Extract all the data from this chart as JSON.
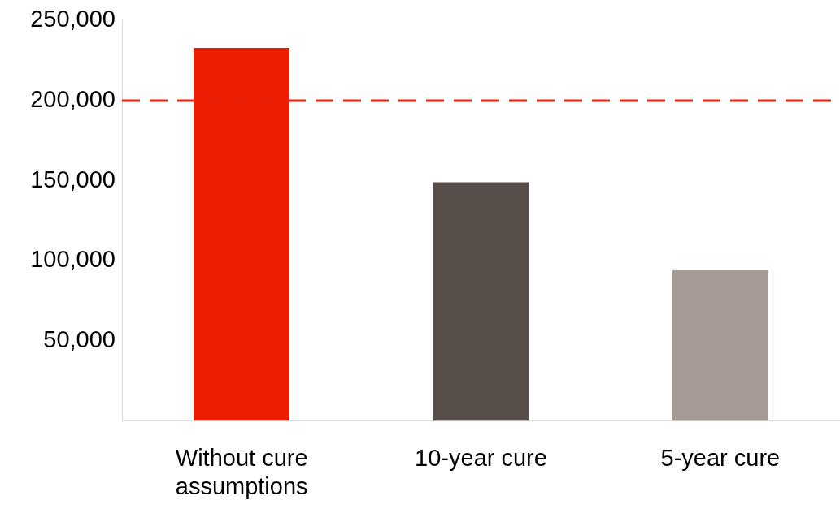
{
  "chart_data": {
    "type": "bar",
    "categories": [
      "Without cure assumptions",
      "10-year cure",
      "5-year cure"
    ],
    "values": [
      233000,
      149000,
      94000
    ],
    "colors": [
      "#ee1c00",
      "#574e4a",
      "#a59a94"
    ],
    "ylim": [
      0,
      250000
    ],
    "yticks": [
      {
        "value": 50000,
        "label": "50,000"
      },
      {
        "value": 100000,
        "label": "100,000"
      },
      {
        "value": 150000,
        "label": "150,000"
      },
      {
        "value": 200000,
        "label": "200,000"
      },
      {
        "value": 250000,
        "label": "250,000"
      }
    ],
    "grid": false,
    "legend": false,
    "ref_lines": [
      {
        "axis": "y",
        "value": 200000,
        "label": null,
        "color": "#e8200e",
        "line_style": "dashed"
      }
    ]
  }
}
